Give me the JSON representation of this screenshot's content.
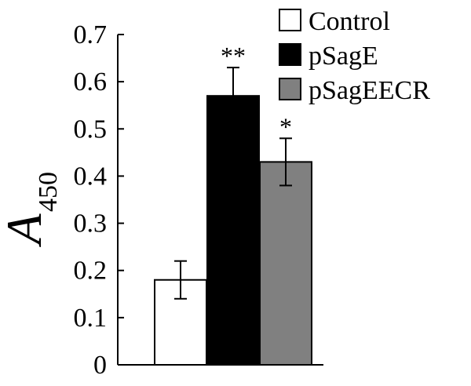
{
  "chart_data": {
    "type": "bar",
    "title": "",
    "xlabel": "",
    "ylabel": "A",
    "ylabel_subscript": "450",
    "ylim": [
      0,
      0.7
    ],
    "yticks": [
      "0",
      "0.1",
      "0.2",
      "0.3",
      "0.4",
      "0.5",
      "0.6",
      "0.7"
    ],
    "grid": false,
    "legend_position": "top-right",
    "series": [
      {
        "name": "Control",
        "value": 0.18,
        "error": 0.04,
        "color": "#ffffff",
        "significance": ""
      },
      {
        "name": "pSagE",
        "value": 0.57,
        "error": 0.06,
        "color": "#000000",
        "significance": "**"
      },
      {
        "name": "pSagEECR",
        "value": 0.43,
        "error": 0.05,
        "color": "#808080",
        "significance": "*"
      }
    ]
  }
}
